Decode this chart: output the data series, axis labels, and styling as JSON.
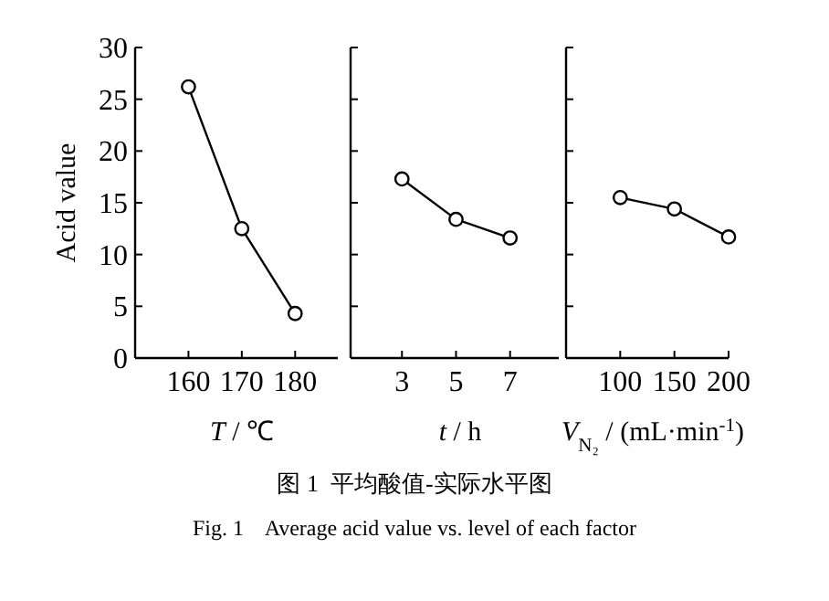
{
  "chart_data": [
    {
      "type": "line",
      "xlabel": "*T* / ℃",
      "ylabel": "Acid value",
      "x": [
        160,
        170,
        180
      ],
      "values": [
        26.2,
        12.5,
        4.3
      ],
      "color": "#000000",
      "marker": "circle",
      "xlim": [
        150,
        188
      ],
      "xticks": [
        160,
        170,
        180
      ],
      "ylim": [
        0,
        30
      ],
      "yticks": [
        0,
        5,
        10,
        15,
        20,
        25,
        30
      ],
      "annotations": [
        "图 1  平均酸值-实际水平图",
        "Fig. 1    Average acid value vs. level of each factor"
      ]
    },
    {
      "type": "line",
      "xlabel": "*t* / h",
      "x": [
        3,
        5,
        7
      ],
      "values": [
        17.3,
        13.4,
        11.6
      ],
      "color": "#000000",
      "marker": "circle",
      "xlim": [
        1.1,
        8.8
      ],
      "xticks": [
        3,
        5,
        7
      ],
      "ylim": [
        0,
        30
      ],
      "yticks": [
        0,
        5,
        10,
        15,
        20,
        25,
        30
      ],
      "tick_labels": "x"
    },
    {
      "type": "line",
      "xlabel": "*V*$_{N₂}$ / (mL·min$^{-1}$)",
      "x": [
        100,
        150,
        200
      ],
      "values": [
        15.5,
        14.4,
        11.7
      ],
      "color": "#000000",
      "marker": "circle",
      "xlim": [
        50,
        200
      ],
      "xticks": [
        100,
        150,
        200
      ],
      "ylim": [
        0,
        30
      ],
      "yticks": [
        0,
        5,
        10,
        15,
        20,
        25,
        30
      ],
      "tick_labels": "x"
    }
  ]
}
